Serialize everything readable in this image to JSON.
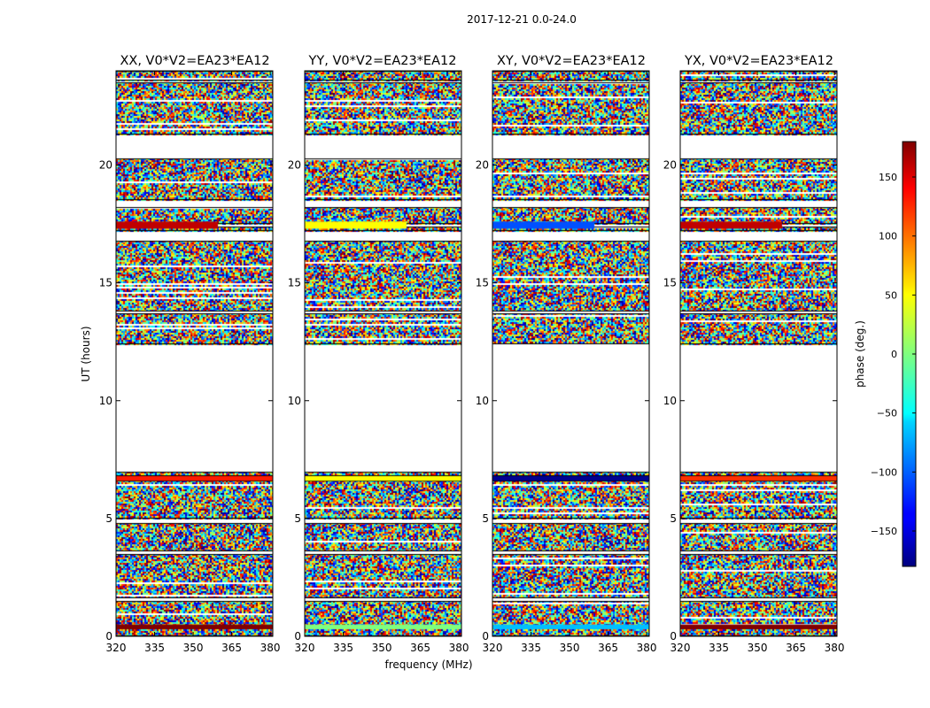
{
  "chart_data": {
    "type": "heatmap",
    "suptitle": "2017-12-21 0.0-24.0",
    "xlabel": "frequency (MHz)",
    "ylabel": "UT (hours)",
    "xlim": [
      320,
      381
    ],
    "ylim": [
      0,
      24
    ],
    "x_ticks": [
      "320",
      "335",
      "350",
      "365",
      "380"
    ],
    "y_ticks": [
      "0",
      "5",
      "10",
      "15",
      "20"
    ],
    "panels": [
      {
        "title": "XX, V0*V2=EA23*EA12",
        "flag_colors": [
          "#c00000",
          "#ff1a00",
          "#800000"
        ]
      },
      {
        "title": "YY, V0*V2=EA23*EA12",
        "flag_colors": [
          "#ffff00",
          "#ffff00",
          "#7fff7f"
        ]
      },
      {
        "title": "XY, V0*V2=EA23*EA12",
        "flag_colors": [
          "#0050ff",
          "#000090",
          "#00c0ff"
        ]
      },
      {
        "title": "YX, V0*V2=EA23*EA12",
        "flag_colors": [
          "#c00000",
          "#ff3000",
          "#800000"
        ]
      }
    ],
    "data_segments_hours": [
      [
        0.0,
        1.5
      ],
      [
        1.6,
        3.5
      ],
      [
        3.6,
        4.8
      ],
      [
        5.0,
        6.6
      ],
      [
        6.8,
        7.0
      ],
      [
        12.4,
        13.7
      ],
      [
        13.8,
        16.8
      ],
      [
        17.2,
        17.4
      ],
      [
        17.5,
        18.2
      ],
      [
        18.5,
        20.3
      ],
      [
        21.3,
        23.5
      ],
      [
        23.6,
        24.0
      ]
    ],
    "colorbar": {
      "label": "phase (deg.)",
      "range": [
        -180,
        180
      ],
      "ticks": [
        "150",
        "100",
        "50",
        "0",
        "−50",
        "−100",
        "−150"
      ],
      "colormap": "jet"
    }
  }
}
